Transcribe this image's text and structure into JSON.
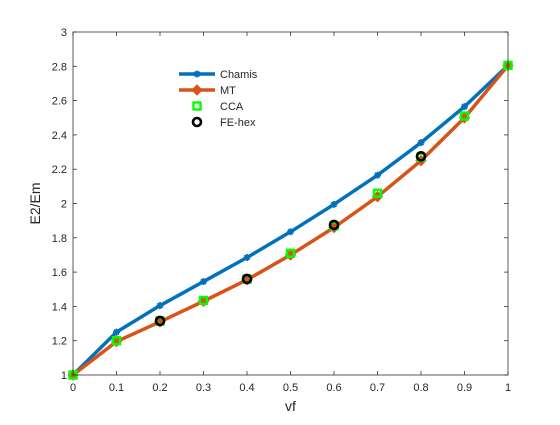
{
  "chart_data": {
    "type": "line",
    "xlabel": "vf",
    "ylabel": "E2/Em",
    "xlim": [
      0,
      1
    ],
    "ylim": [
      1,
      3
    ],
    "xticks": [
      0,
      0.1,
      0.2,
      0.3,
      0.4,
      0.5,
      0.6,
      0.7,
      0.8,
      0.9,
      1
    ],
    "yticks": [
      1,
      1.2,
      1.4,
      1.6,
      1.8,
      2,
      2.2,
      2.4,
      2.6,
      2.8,
      3
    ],
    "xtick_labels": [
      "0",
      "0.1",
      "0.2",
      "0.3",
      "0.4",
      "0.5",
      "0.6",
      "0.7",
      "0.8",
      "0.9",
      "1"
    ],
    "ytick_labels": [
      "1",
      "1.2",
      "1.4",
      "1.6",
      "1.8",
      "2",
      "2.2",
      "2.4",
      "2.6",
      "2.8",
      "3"
    ],
    "grid": false,
    "legend_position": "top-left",
    "series": [
      {
        "name": "Chamis",
        "style": "line",
        "marker": "asterisk",
        "color": "#0072bd",
        "x": [
          0,
          0.1,
          0.2,
          0.3,
          0.4,
          0.5,
          0.6,
          0.7,
          0.8,
          0.9,
          1
        ],
        "y": [
          1.0,
          1.25,
          1.405,
          1.545,
          1.685,
          1.835,
          1.995,
          2.165,
          2.355,
          2.565,
          2.805
        ]
      },
      {
        "name": "MT",
        "style": "line",
        "marker": "diamond",
        "color": "#d95319",
        "x": [
          0,
          0.1,
          0.2,
          0.3,
          0.4,
          0.5,
          0.6,
          0.7,
          0.8,
          0.9,
          1
        ],
        "y": [
          1.0,
          1.195,
          1.31,
          1.43,
          1.555,
          1.7,
          1.86,
          2.04,
          2.25,
          2.5,
          2.805
        ]
      },
      {
        "name": "CCA",
        "style": "marker",
        "marker": "square",
        "color": "#00ff00",
        "x": [
          0,
          0.1,
          0.2,
          0.3,
          0.4,
          0.5,
          0.6,
          0.7,
          0.8,
          0.9,
          1
        ],
        "y": [
          1.0,
          1.2,
          1.315,
          1.435,
          1.56,
          1.71,
          1.87,
          2.06,
          2.27,
          2.51,
          2.805
        ]
      },
      {
        "name": "FE-hex",
        "style": "marker",
        "marker": "circle",
        "color": "#000000",
        "x": [
          0.2,
          0.4,
          0.6,
          0.8
        ],
        "y": [
          1.315,
          1.56,
          1.875,
          2.275
        ]
      }
    ]
  }
}
